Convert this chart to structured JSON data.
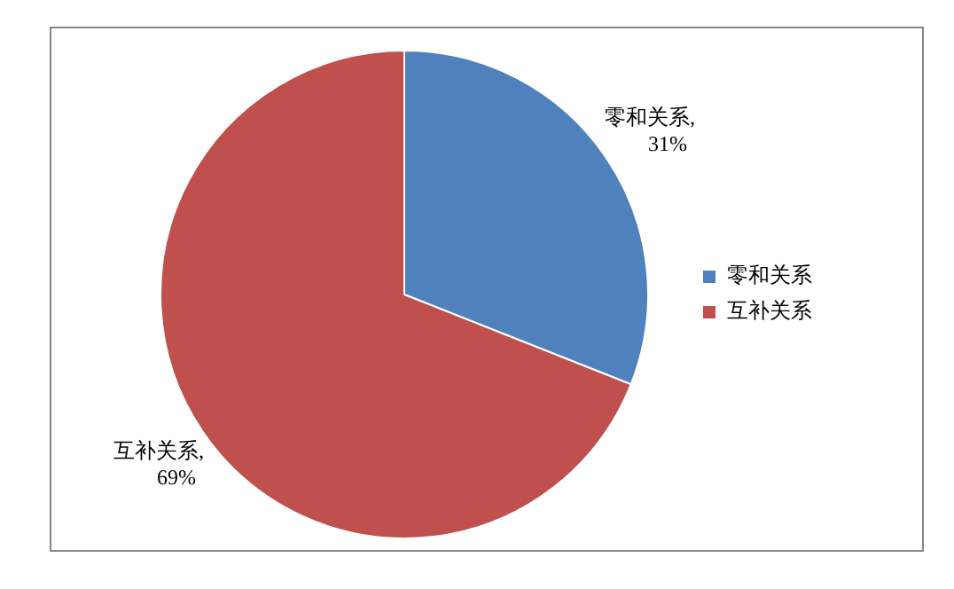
{
  "chart_data": {
    "type": "pie",
    "categories": [
      "零和关系",
      "互补关系"
    ],
    "values": [
      31,
      69
    ],
    "colors": [
      "#4f81bd",
      "#c0504d"
    ],
    "value_labels": [
      "零和关系,\n31%",
      "互补关系,\n69%"
    ],
    "legend": "right"
  }
}
